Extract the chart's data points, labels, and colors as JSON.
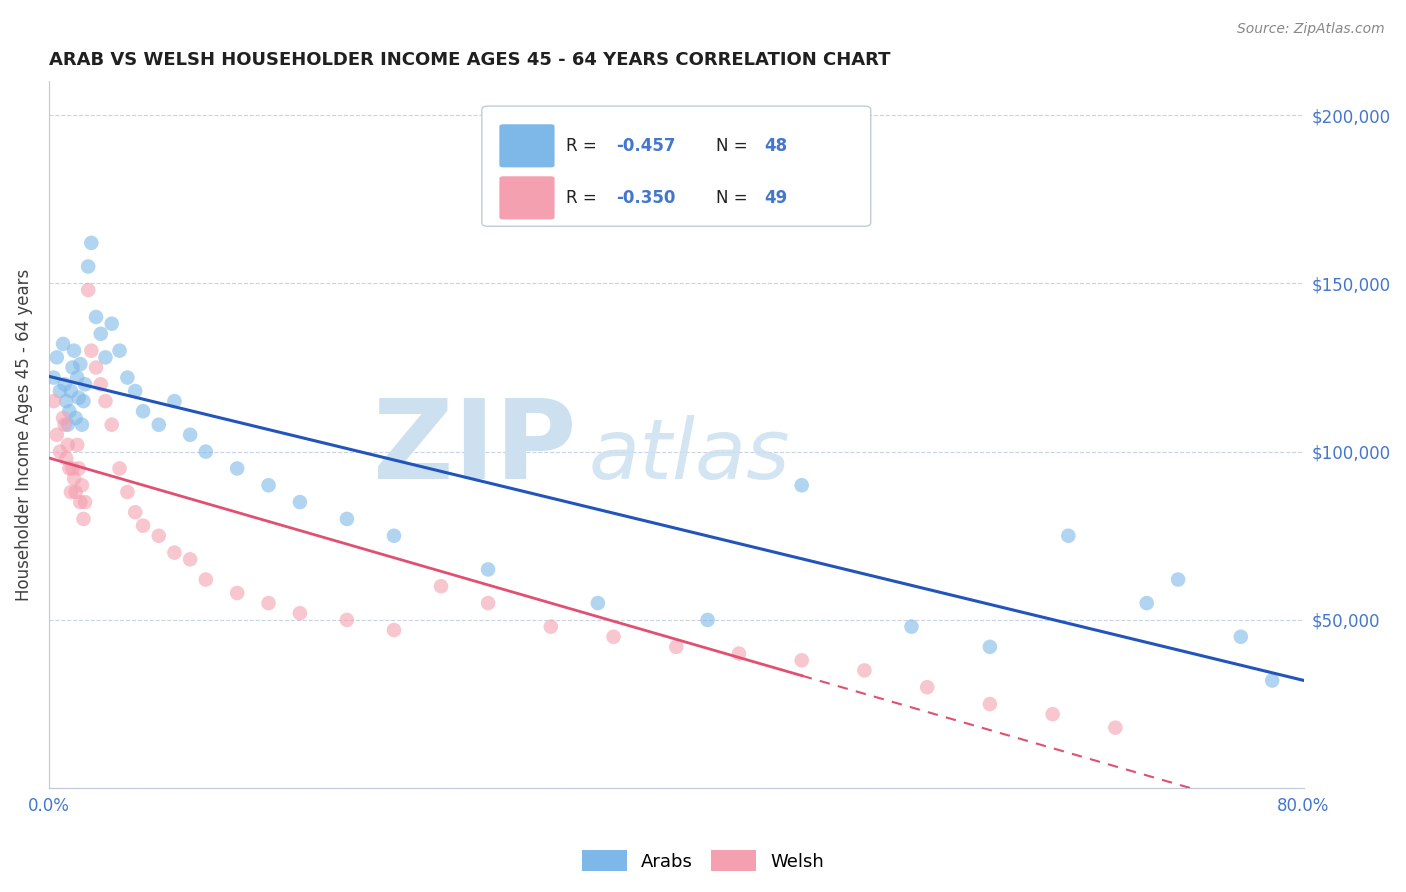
{
  "title": "ARAB VS WELSH HOUSEHOLDER INCOME AGES 45 - 64 YEARS CORRELATION CHART",
  "source_text": "Source: ZipAtlas.com",
  "ylabel": "Householder Income Ages 45 - 64 years",
  "xlim": [
    0.0,
    80.0
  ],
  "ylim": [
    0,
    210000
  ],
  "yticks": [
    0,
    50000,
    100000,
    150000,
    200000
  ],
  "ytick_labels": [
    "",
    "$50,000",
    "$100,000",
    "$150,000",
    "$200,000"
  ],
  "xticks": [
    0.0,
    10.0,
    20.0,
    30.0,
    40.0,
    50.0,
    60.0,
    70.0,
    80.0
  ],
  "arab_color": "#7eb8e8",
  "welsh_color": "#f4a0b0",
  "arab_line_color": "#2255bb",
  "welsh_line_color": "#e05070",
  "dot_size": 110,
  "dot_alpha": 0.6,
  "watermark": "ZIPatlas",
  "watermark_color": "#cce0f0",
  "background_color": "#ffffff",
  "grid_color": "#c8d4e4",
  "title_color": "#202020",
  "axis_label_color": "#404040",
  "tick_color": "#4477cc",
  "arab_x": [
    0.3,
    0.5,
    0.7,
    0.9,
    1.0,
    1.1,
    1.2,
    1.3,
    1.4,
    1.5,
    1.6,
    1.7,
    1.8,
    1.9,
    2.0,
    2.1,
    2.2,
    2.3,
    2.5,
    2.7,
    3.0,
    3.3,
    3.6,
    4.0,
    4.5,
    5.0,
    5.5,
    6.0,
    7.0,
    8.0,
    9.0,
    10.0,
    12.0,
    14.0,
    16.0,
    19.0,
    22.0,
    28.0,
    35.0,
    42.0,
    48.0,
    55.0,
    60.0,
    65.0,
    70.0,
    72.0,
    76.0,
    78.0
  ],
  "arab_y": [
    122000,
    128000,
    118000,
    132000,
    120000,
    115000,
    108000,
    112000,
    118000,
    125000,
    130000,
    110000,
    122000,
    116000,
    126000,
    108000,
    115000,
    120000,
    155000,
    162000,
    140000,
    135000,
    128000,
    138000,
    130000,
    122000,
    118000,
    112000,
    108000,
    115000,
    105000,
    100000,
    95000,
    90000,
    85000,
    80000,
    75000,
    65000,
    55000,
    50000,
    90000,
    48000,
    42000,
    75000,
    55000,
    62000,
    45000,
    32000
  ],
  "welsh_x": [
    0.3,
    0.5,
    0.7,
    0.9,
    1.0,
    1.1,
    1.2,
    1.3,
    1.4,
    1.5,
    1.6,
    1.7,
    1.8,
    1.9,
    2.0,
    2.1,
    2.2,
    2.3,
    2.5,
    2.7,
    3.0,
    3.3,
    3.6,
    4.0,
    4.5,
    5.0,
    5.5,
    6.0,
    7.0,
    8.0,
    9.0,
    10.0,
    12.0,
    14.0,
    16.0,
    19.0,
    22.0,
    25.0,
    28.0,
    32.0,
    36.0,
    40.0,
    44.0,
    48.0,
    52.0,
    56.0,
    60.0,
    64.0,
    68.0
  ],
  "welsh_y": [
    115000,
    105000,
    100000,
    110000,
    108000,
    98000,
    102000,
    95000,
    88000,
    95000,
    92000,
    88000,
    102000,
    95000,
    85000,
    90000,
    80000,
    85000,
    148000,
    130000,
    125000,
    120000,
    115000,
    108000,
    95000,
    88000,
    82000,
    78000,
    75000,
    70000,
    68000,
    62000,
    58000,
    55000,
    52000,
    50000,
    47000,
    60000,
    55000,
    48000,
    45000,
    42000,
    40000,
    38000,
    35000,
    30000,
    25000,
    22000,
    18000
  ],
  "welsh_solid_end": 48.0,
  "arab_line_x0": 0.0,
  "arab_line_x1": 80.0,
  "welsh_line_x0": 0.0,
  "welsh_line_x1": 80.0,
  "legend_r1": "-0.457",
  "legend_n1": "48",
  "legend_r2": "-0.350",
  "legend_n2": "49",
  "source_color": "#888888"
}
